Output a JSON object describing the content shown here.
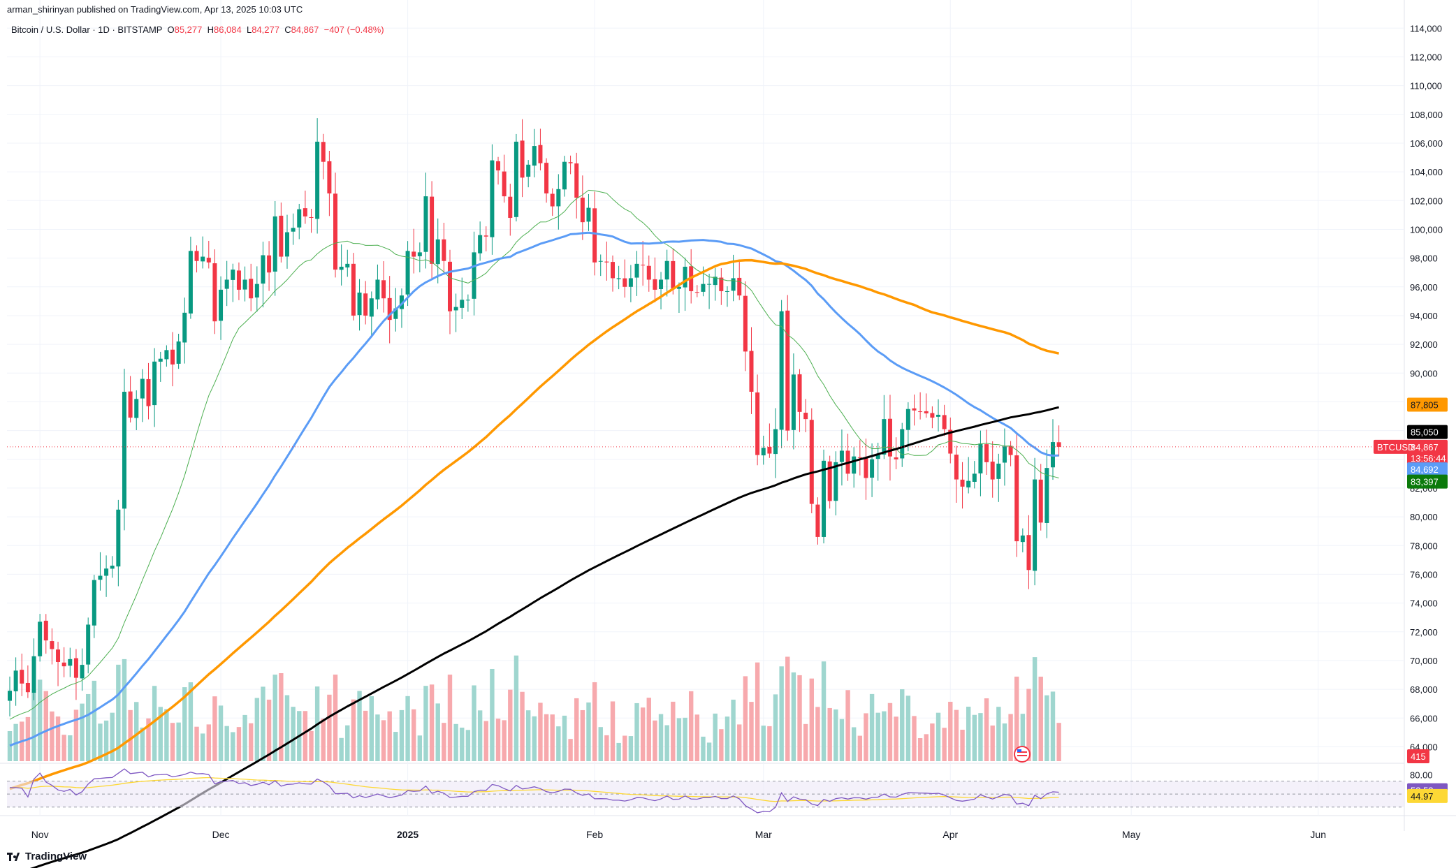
{
  "publisher": "arman_shirinyan published on TradingView.com, Apr 13, 2025 10:03 UTC",
  "symbol_header": {
    "name": "Bitcoin / U.S. Dollar · 1D · BITSTAMP",
    "open_label": "O",
    "open": "85,277",
    "high_label": "H",
    "high": "86,084",
    "low_label": "L",
    "low": "84,277",
    "close_label": "C",
    "close": "84,867",
    "change": "−407 (−0.48%)"
  },
  "watermark": "TradingView",
  "colors": {
    "up": "#089981",
    "down": "#f23645",
    "vol_up": "#9fd6cf",
    "vol_down": "#f7a9ad",
    "ma_blue": "#5b9cf6",
    "ma_orange": "#ff9800",
    "ma_black": "#000000",
    "ma_green": "#4caf50",
    "rsi_line": "#7e57c2",
    "rsi_signal": "#fdd835",
    "rsi_band": "#ede7f6"
  },
  "chart_data": {
    "type": "candlestick",
    "symbol": "BTCUSD",
    "ylim": [
      63000,
      114500
    ],
    "y_ticks": [
      "114,000",
      "112,000",
      "110,000",
      "108,000",
      "106,000",
      "104,000",
      "102,000",
      "100,000",
      "98,000",
      "96,000",
      "94,000",
      "92,000",
      "90,000",
      "88,000",
      "86,000",
      "84,000",
      "82,000",
      "80,000",
      "78,000",
      "76,000",
      "74,000",
      "72,000",
      "70,000",
      "68,000",
      "66,000",
      "64,000"
    ],
    "x_labels": [
      {
        "label": "Nov",
        "day": 5
      },
      {
        "label": "Dec",
        "day": 35
      },
      {
        "label": "2025",
        "day": 66
      },
      {
        "label": "Feb",
        "day": 97
      },
      {
        "label": "Mar",
        "day": 125
      },
      {
        "label": "Apr",
        "day": 156
      },
      {
        "label": "May",
        "day": 186
      },
      {
        "label": "Jun",
        "day": 217
      }
    ],
    "closes": [
      67900,
      69300,
      68400,
      67800,
      70300,
      72700,
      71400,
      70800,
      69900,
      69600,
      70100,
      68800,
      69700,
      72500,
      75600,
      75900,
      76400,
      76600,
      80500,
      88700,
      86900,
      88200,
      89600,
      87700,
      90800,
      91000,
      91600,
      90600,
      92200,
      94200,
      98500,
      97800,
      98100,
      97700,
      93600,
      95800,
      96500,
      97200,
      95800,
      96500,
      95200,
      96200,
      98200,
      97000,
      100900,
      98100,
      99800,
      100100,
      101400,
      100900,
      100800,
      106100,
      104700,
      102500,
      97200,
      97400,
      97600,
      94000,
      95600,
      94000,
      95200,
      96500,
      95200,
      93700,
      94500,
      95400,
      98500,
      98100,
      98400,
      102300,
      97600,
      99300,
      97800,
      94300,
      94600,
      95100,
      95100,
      98400,
      99600,
      99500,
      104800,
      104100,
      102300,
      100800,
      106100,
      103600,
      104500,
      105800,
      104600,
      102500,
      101600,
      102800,
      104700,
      104600,
      102200,
      100500,
      101500,
      97700,
      97800,
      97700,
      96600,
      96600,
      96000,
      96600,
      97600,
      97500,
      96500,
      95800,
      96500,
      97800,
      95900,
      96000,
      97400,
      95700,
      95600,
      96200,
      96200,
      96700,
      95700,
      95700,
      96600,
      95400,
      91500,
      88700,
      84300,
      84800,
      84400,
      86100,
      94300,
      86000,
      89900,
      87300,
      86800,
      80900,
      78600,
      83900,
      81100,
      83800,
      84600,
      83000,
      84200,
      84100,
      82700,
      84000,
      84300,
      86800,
      84200,
      84000,
      86100,
      87500,
      87400,
      87300,
      87200,
      86900,
      87100,
      86100,
      84400,
      82600,
      82100,
      82500,
      83000,
      85100,
      83800,
      82600,
      83700,
      84900,
      84300,
      78300,
      78700,
      76300,
      82600,
      79600,
      83400,
      85200,
      84867
    ],
    "mas": [
      {
        "name": "MA20",
        "period": 20,
        "color": "#4caf50",
        "width": 1,
        "current": "83,397"
      },
      {
        "name": "MA50",
        "period": 50,
        "color": "#5b9cf6",
        "width": 3,
        "current": "84,692"
      },
      {
        "name": "MA100",
        "period": 100,
        "color": "#ff9800",
        "width": 3.5,
        "current": "87,805"
      },
      {
        "name": "MA200",
        "period": 200,
        "color": "#000000",
        "width": 3,
        "current": "85,050"
      }
    ],
    "price_labels": {
      "symbol_tag": "BTCUSD",
      "last_price": "84,867",
      "countdown": "13:56:44",
      "volume_tag": "415"
    },
    "rsi": {
      "ticks": [
        "80.00",
        "52.52",
        "44.97"
      ],
      "current_rsi": "52.52",
      "current_signal": "44.97"
    }
  }
}
